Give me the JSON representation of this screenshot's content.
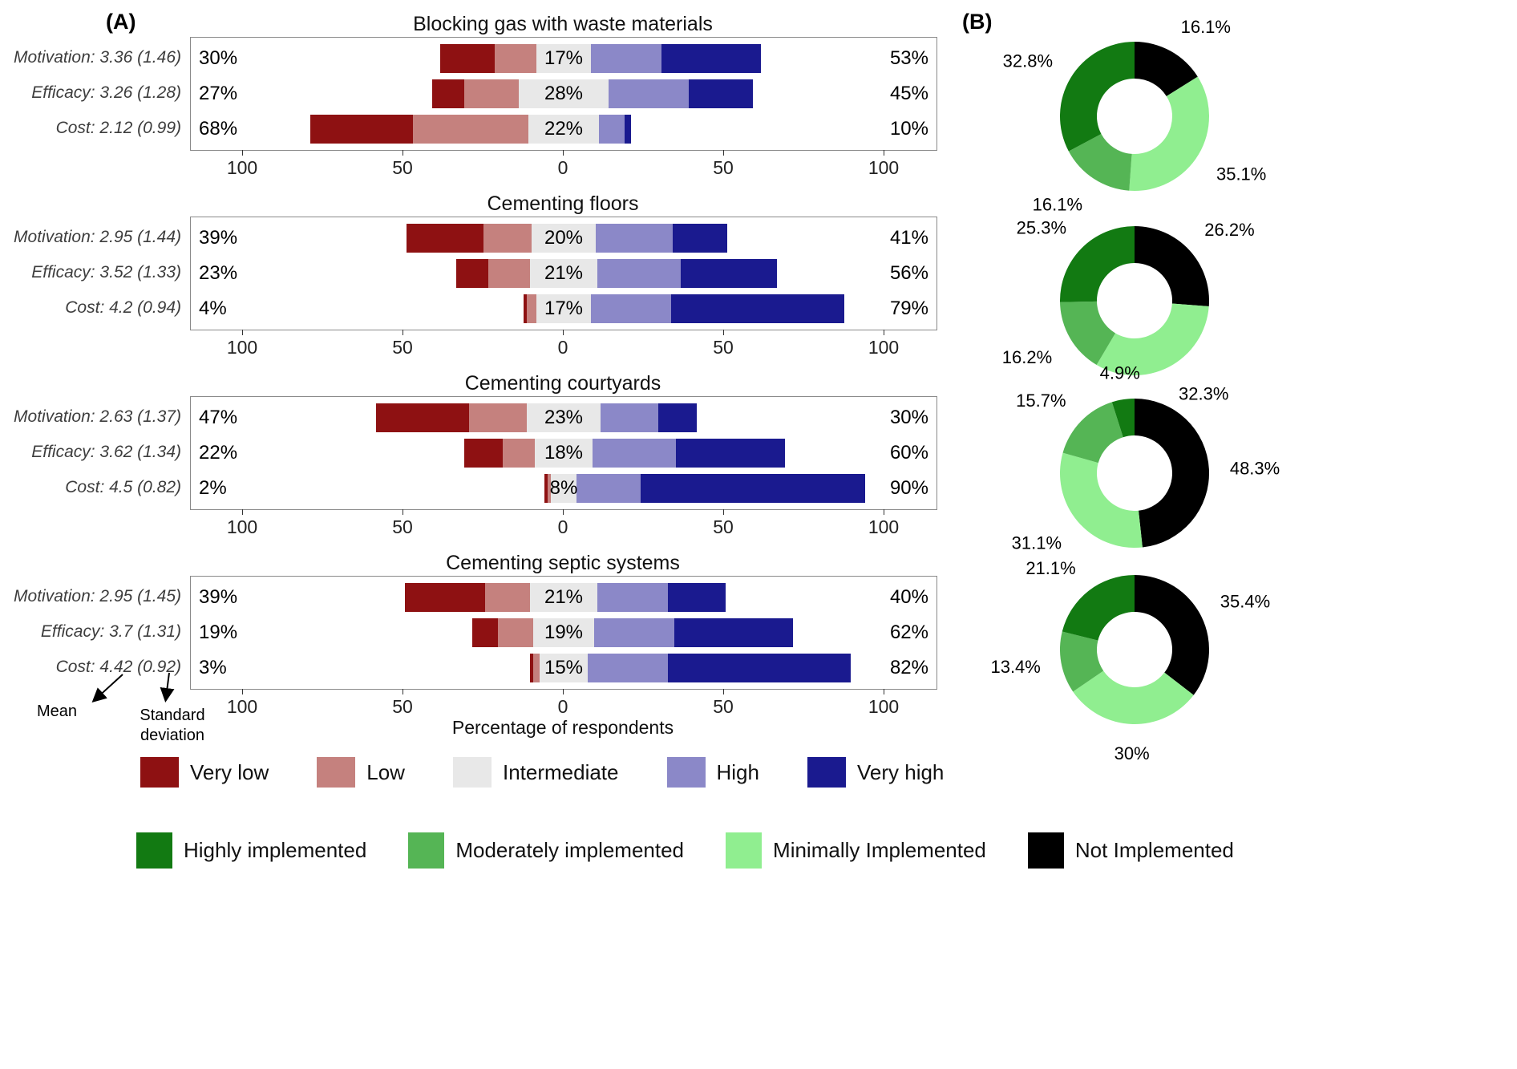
{
  "panel_a_label": "(A)",
  "panel_b_label": "(B)",
  "axis": {
    "tick_labels": [
      "100",
      "50",
      "0",
      "50",
      "100"
    ],
    "x_label": "Percentage of respondents"
  },
  "annotations": {
    "mean": "Mean",
    "sd_line1": "Standard",
    "sd_line2": "deviation"
  },
  "likert_legend": [
    {
      "label": "Very low",
      "color": "#8e1112"
    },
    {
      "label": "Low",
      "color": "#c5817e"
    },
    {
      "label": "Intermediate",
      "color": "#e8e8e8"
    },
    {
      "label": "High",
      "color": "#8b88c8"
    },
    {
      "label": "Very high",
      "color": "#1a1a8f"
    }
  ],
  "implementation_legend": [
    {
      "label": "Highly implemented",
      "color": "#127a12"
    },
    {
      "label": "Moderately implemented",
      "color": "#55b555"
    },
    {
      "label": "Minimally Implemented",
      "color": "#90ee90"
    },
    {
      "label": "Not Implemented",
      "color": "#000000"
    }
  ],
  "chart_data": [
    {
      "type": "bar",
      "subtype": "diverging_stacked",
      "title": "Blocking gas with waste materials",
      "categories": [
        "Very low",
        "Low",
        "Intermediate",
        "High",
        "Very high"
      ],
      "x_ticks": [
        -100,
        -50,
        0,
        50,
        100
      ],
      "rows": [
        {
          "label": "Motivation: 3.36 (1.46)",
          "left_label": "30%",
          "center_label": "17%",
          "right_label": "53%",
          "values": [
            17,
            13,
            17,
            22,
            31
          ]
        },
        {
          "label": "Efficacy: 3.26 (1.28)",
          "left_label": "27%",
          "center_label": "28%",
          "right_label": "45%",
          "values": [
            10,
            17,
            28,
            25,
            20
          ]
        },
        {
          "label": "Cost: 2.12 (0.99)",
          "left_label": "68%",
          "center_label": "22%",
          "right_label": "10%",
          "values": [
            32,
            36,
            22,
            8,
            2
          ]
        }
      ]
    },
    {
      "type": "bar",
      "subtype": "diverging_stacked",
      "title": "Cementing floors",
      "categories": [
        "Very low",
        "Low",
        "Intermediate",
        "High",
        "Very high"
      ],
      "x_ticks": [
        -100,
        -50,
        0,
        50,
        100
      ],
      "rows": [
        {
          "label": "Motivation: 2.95 (1.44)",
          "left_label": "39%",
          "center_label": "20%",
          "right_label": "41%",
          "values": [
            24,
            15,
            20,
            24,
            17
          ]
        },
        {
          "label": "Efficacy: 3.52 (1.33)",
          "left_label": "23%",
          "center_label": "21%",
          "right_label": "56%",
          "values": [
            10,
            13,
            21,
            26,
            30
          ]
        },
        {
          "label": "Cost: 4.2 (0.94)",
          "left_label": "4%",
          "center_label": "17%",
          "right_label": "79%",
          "values": [
            1,
            3,
            17,
            25,
            54
          ]
        }
      ]
    },
    {
      "type": "bar",
      "subtype": "diverging_stacked",
      "title": "Cementing courtyards",
      "categories": [
        "Very low",
        "Low",
        "Intermediate",
        "High",
        "Very high"
      ],
      "x_ticks": [
        -100,
        -50,
        0,
        50,
        100
      ],
      "rows": [
        {
          "label": "Motivation: 2.63 (1.37)",
          "left_label": "47%",
          "center_label": "23%",
          "right_label": "30%",
          "values": [
            29,
            18,
            23,
            18,
            12
          ]
        },
        {
          "label": "Efficacy: 3.62 (1.34)",
          "left_label": "22%",
          "center_label": "18%",
          "right_label": "60%",
          "values": [
            12,
            10,
            18,
            26,
            34
          ]
        },
        {
          "label": "Cost: 4.5 (0.82)",
          "left_label": "2%",
          "center_label": "8%",
          "right_label": "90%",
          "values": [
            1,
            1,
            8,
            20,
            70
          ]
        }
      ]
    },
    {
      "type": "bar",
      "subtype": "diverging_stacked",
      "title": "Cementing septic systems",
      "categories": [
        "Very low",
        "Low",
        "Intermediate",
        "High",
        "Very high"
      ],
      "x_ticks": [
        -100,
        -50,
        0,
        50,
        100
      ],
      "rows": [
        {
          "label": "Motivation: 2.95 (1.45)",
          "left_label": "39%",
          "center_label": "21%",
          "right_label": "40%",
          "values": [
            25,
            14,
            21,
            22,
            18
          ]
        },
        {
          "label": "Efficacy: 3.7 (1.31)",
          "left_label": "19%",
          "center_label": "19%",
          "right_label": "62%",
          "values": [
            8,
            11,
            19,
            25,
            37
          ]
        },
        {
          "label": "Cost: 4.42 (0.92)",
          "left_label": "3%",
          "center_label": "15%",
          "right_label": "82%",
          "values": [
            1,
            2,
            15,
            25,
            57
          ]
        }
      ]
    },
    {
      "type": "pie",
      "subtype": "donut",
      "categories": [
        "Not Implemented",
        "Minimally Implemented",
        "Moderately implemented",
        "Highly implemented"
      ],
      "values": [
        16.1,
        35.1,
        16.1,
        32.8
      ],
      "labels": [
        "16.1%",
        "35.1%",
        "16.1%",
        "32.8%"
      ]
    },
    {
      "type": "pie",
      "subtype": "donut",
      "categories": [
        "Not Implemented",
        "Minimally Implemented",
        "Moderately implemented",
        "Highly implemented"
      ],
      "values": [
        26.2,
        32.3,
        16.2,
        25.3
      ],
      "labels": [
        "26.2%",
        "32.3%",
        "16.2%",
        "25.3%"
      ]
    },
    {
      "type": "pie",
      "subtype": "donut",
      "categories": [
        "Not Implemented",
        "Minimally Implemented",
        "Moderately implemented",
        "Highly implemented"
      ],
      "values": [
        48.3,
        31.1,
        15.7,
        4.9
      ],
      "labels": [
        "48.3%",
        "31.1%",
        "15.7%",
        "4.9%"
      ]
    },
    {
      "type": "pie",
      "subtype": "donut",
      "categories": [
        "Not Implemented",
        "Minimally Implemented",
        "Moderately implemented",
        "Highly implemented"
      ],
      "values": [
        35.4,
        30,
        13.4,
        21.1
      ],
      "labels": [
        "35.4%",
        "30%",
        "13.4%",
        "21.1%"
      ]
    }
  ]
}
